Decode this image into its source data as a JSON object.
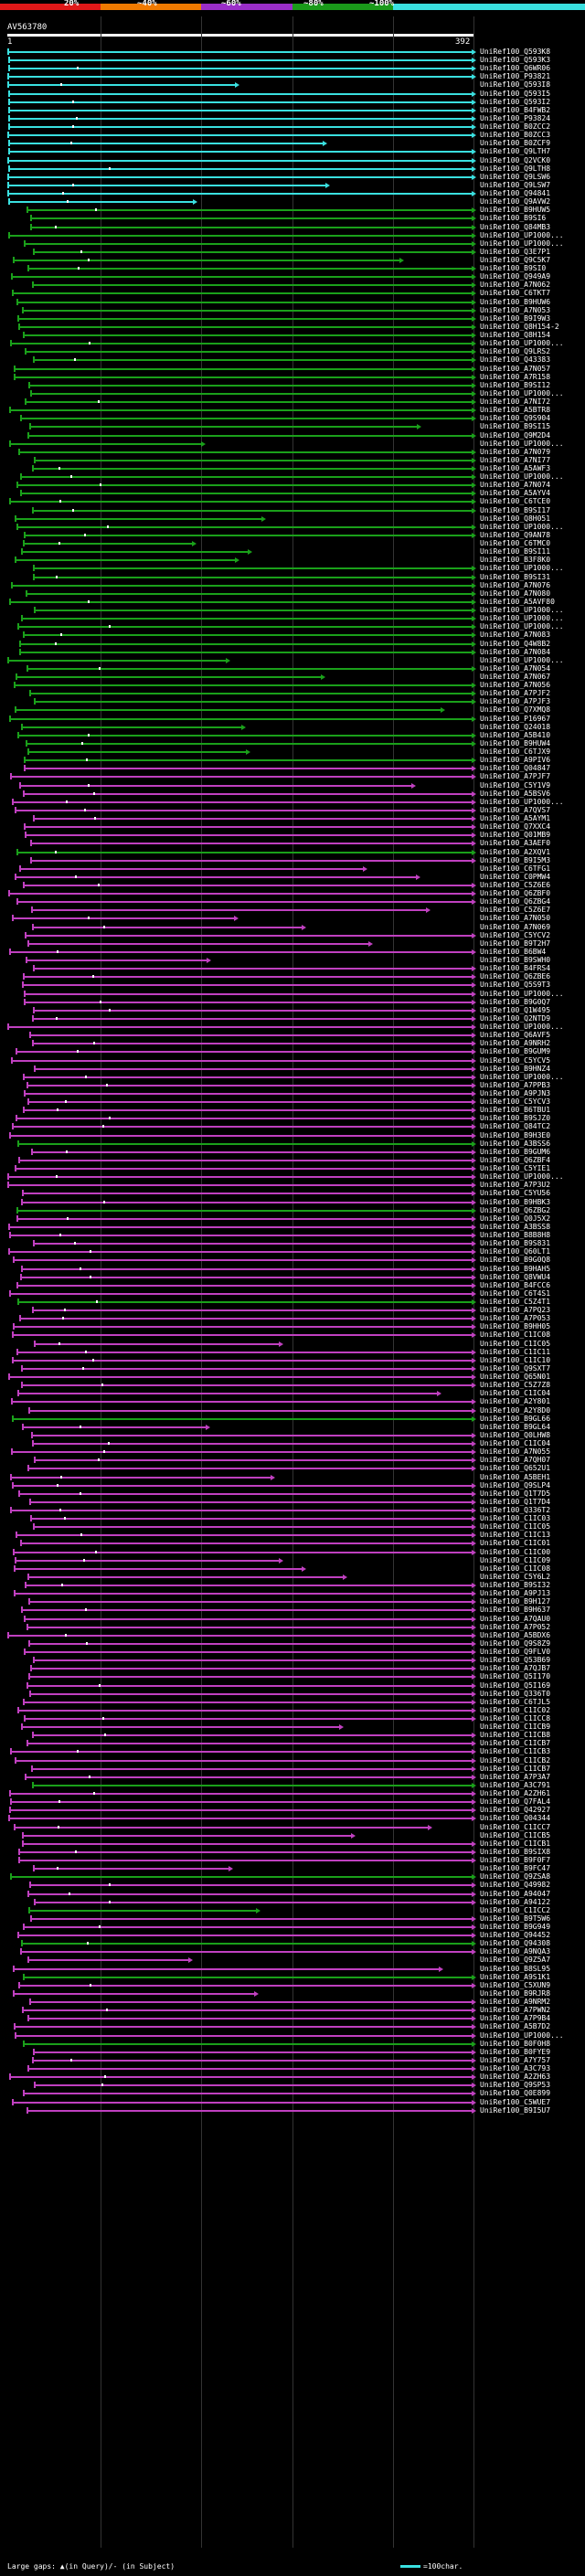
{
  "scale": {
    "labels": [
      "20%",
      "~40%",
      "~60%",
      "~80%",
      "~100%"
    ],
    "colors": [
      "#e01818",
      "#f07a00",
      "#9a2ec8",
      "#1a9a1a",
      "#3ae0e0"
    ]
  },
  "query": {
    "title": "AV563780",
    "start": "1",
    "end": "392"
  },
  "colors": {
    "cyan": "#3ae0e0",
    "green": "#1aa01a",
    "magenta": "#c040c0"
  },
  "hits": [
    "UniRef100_Q593K8",
    "UniRef100_Q593K3",
    "UniRef100_Q6WR06",
    "UniRef100_P93821",
    "UniRef100_Q593I8",
    "UniRef100_Q593I5",
    "UniRef100_Q593I2",
    "UniRef100_B4FWB2",
    "UniRef100_P93824",
    "UniRef100_B0ZCC2",
    "UniRef100_B0ZCC3",
    "UniRef100_B0ZCF9",
    "UniRef100_Q9LTH7",
    "UniRef100_Q2VCK0",
    "UniRef100_Q9LTH8",
    "UniRef100_Q9LSW6",
    "UniRef100_Q9LSW7",
    "UniRef100_Q94841",
    "UniRef100_Q9AVW2",
    "UniRef100_B9HUW5",
    "UniRef100_B9SI6",
    "UniRef100_Q84MB3",
    "UniRef100_UP1000...",
    "UniRef100_UP1000...",
    "UniRef100_Q3E7P1",
    "UniRef100_Q9C5K7",
    "UniRef100_B9SI0",
    "UniRef100_Q949A9",
    "UniRef100_A7N062",
    "UniRef100_C6TKT7",
    "UniRef100_B9HUW6",
    "UniRef100_A7N053",
    "UniRef100_B9I9W3",
    "UniRef100_Q8H154-2",
    "UniRef100_Q8H154",
    "UniRef100_UP1000...",
    "UniRef100_Q9LRS2",
    "UniRef100_Q43383",
    "UniRef100_A7N057",
    "UniRef100_A7R158",
    "UniRef100_B9SI12",
    "UniRef100_UP1000...",
    "UniRef100_A7NI72",
    "UniRef100_A5BTR8",
    "UniRef100_Q9S904",
    "UniRef100_B9SI15",
    "UniRef100_Q9M2D4",
    "UniRef100_UP1000...",
    "UniRef100_A7N079",
    "UniRef100_A7NI77",
    "UniRef100_A5AWF3",
    "UniRef100_UP1000...",
    "UniRef100_A7N074",
    "UniRef100_A5AYV4",
    "UniRef100_C6TCE0",
    "UniRef100_B9SI17",
    "UniRef100_Q8H051",
    "UniRef100_UP1000...",
    "UniRef100_Q9AN78",
    "UniRef100_C6TMC0",
    "UniRef100_B9SI11",
    "UniRef100_B3F8K0",
    "UniRef100_UP1000...",
    "UniRef100_B9SI31",
    "UniRef100_A7N076",
    "UniRef100_A7N080",
    "UniRef100_A5AVF80",
    "UniRef100_UP1000...",
    "UniRef100_UP1000...",
    "UniRef100_UP1000...",
    "UniRef100_A7N083",
    "UniRef100_Q4W8B2",
    "UniRef100_A7N084",
    "UniRef100_UP1000...",
    "UniRef100_A7N054",
    "UniRef100_A7N067",
    "UniRef100_A7N056",
    "UniRef100_A7PJF2",
    "UniRef100_A7PJF3",
    "UniRef100_Q7XMQ8",
    "UniRef100_P16967",
    "UniRef100_Q24018",
    "UniRef100_A5B410",
    "UniRef100_B9HUW4",
    "UniRef100_C6TJX9",
    "UniRef100_A9PIV6",
    "UniRef100_Q04847",
    "UniRef100_A7PJF7",
    "UniRef100_C5Y1V9",
    "UniRef100_A5BSV6",
    "UniRef100_UP1000...",
    "UniRef100_A7QVS7",
    "UniRef100_A5AYM1",
    "UniRef100_Q7XXC4",
    "UniRef100_Q01MB9",
    "UniRef100_A3AEF0",
    "UniRef100_A2XQV1",
    "UniRef100_B9I5M3",
    "UniRef100_C6TFG1",
    "UniRef100_C0PMW4",
    "UniRef100_C5Z6E6",
    "UniRef100_Q6ZBF0",
    "UniRef100_Q6ZBG4",
    "UniRef100_C5Z6E7",
    "UniRef100_A7N050",
    "UniRef100_A7N069",
    "UniRef100_C5YCV2",
    "UniRef100_B9T2H7",
    "UniRef100_B6BW4",
    "UniRef100_B9SWH0",
    "UniRef100_B4FRS4",
    "UniRef100_Q6ZBE6",
    "UniRef100_Q5S9T3",
    "UniRef100_UP1000...",
    "UniRef100_B9G0Q7",
    "UniRef100_Q1W495",
    "UniRef100_Q2NTD9",
    "UniRef100_UP1000...",
    "UniRef100_Q6AVF5",
    "UniRef100_A9NRH2",
    "UniRef100_B9GUM9",
    "UniRef100_C5YCV5",
    "UniRef100_B9HNZ4",
    "UniRef100_UP1000...",
    "UniRef100_A7PPB3",
    "UniRef100_A9PJN3",
    "UniRef100_C5YCV3",
    "UniRef100_B6TBU1",
    "UniRef100_B9SJZ0",
    "UniRef100_Q84TC2",
    "UniRef100_B9H3E0",
    "UniRef100_A3BSS6",
    "UniRef100_B9GUM6",
    "UniRef100_Q6ZBF4",
    "UniRef100_C5YIE1",
    "UniRef100_UP1000...",
    "UniRef100_A7P3U2",
    "UniRef100_C5YU56",
    "UniRef100_B9HBK3",
    "UniRef100_Q6ZBG2",
    "UniRef100_Q0J5X2",
    "UniRef100_A3BSS8",
    "UniRef100_B8B8H8",
    "UniRef100_B9S831",
    "UniRef100_Q60LT1",
    "UniRef100_B9G0Q8",
    "UniRef100_B9HAH5",
    "UniRef100_Q8VWU4",
    "UniRef100_B4FCC6",
    "UniRef100_C6T4S1",
    "UniRef100_C5Z4T1",
    "UniRef100_A7PQ23",
    "UniRef100_A7P053",
    "UniRef100_B9HH05",
    "UniRef100_C1IC08",
    "UniRef100_C1IC05",
    "UniRef100_C1IC11",
    "UniRef100_C1IC10",
    "UniRef100_Q9SXT7",
    "UniRef100_Q65N01",
    "UniRef100_C5Z7Z8",
    "UniRef100_C1IC04",
    "UniRef100_A2Y801",
    "UniRef100_A2Y8D0",
    "UniRef100_B9GL66",
    "UniRef100_B9GL64",
    "UniRef100_Q0LHW8",
    "UniRef100_C1IC04",
    "UniRef100_A7N055",
    "UniRef100_A7QH07",
    "UniRef100_Q652U1",
    "UniRef100_A5BEH1",
    "UniRef100_Q9SLP4",
    "UniRef100_Q1T7D5",
    "UniRef100_Q1T7D4",
    "UniRef100_Q336T2",
    "UniRef100_C1IC03",
    "UniRef100_C1IC05",
    "UniRef100_C1IC13",
    "UniRef100_C1IC01",
    "UniRef100_C1IC00",
    "UniRef100_C1IC09",
    "UniRef100_C1IC08",
    "UniRef100_C5Y6L2",
    "UniRef100_B9SI32",
    "UniRef100_A9PJ13",
    "UniRef100_B9H127",
    "UniRef100_B9H637",
    "UniRef100_A7QAU0",
    "UniRef100_A7P052",
    "UniRef100_A5BDX6",
    "UniRef100_Q9S8Z9",
    "UniRef100_Q9FLV0",
    "UniRef100_Q53B69",
    "UniRef100_A7QJB7",
    "UniRef100_Q5I170",
    "UniRef100_Q5I169",
    "UniRef100_Q336T0",
    "UniRef100_C6TJL5",
    "UniRef100_C1IC02",
    "UniRef100_C1ICC8",
    "UniRef100_C1ICB9",
    "UniRef100_C1ICB8",
    "UniRef100_C1ICB7",
    "UniRef100_C1ICB3",
    "UniRef100_C1ICB2",
    "UniRef100_C1ICB7",
    "UniRef100_A7P3A7",
    "UniRef100_A3C791",
    "UniRef100_A2ZH61",
    "UniRef100_Q7FAL4",
    "UniRef100_Q42927",
    "UniRef100_Q04344",
    "UniRef100_C1ICC7",
    "UniRef100_C1ICB5",
    "UniRef100_C1ICB1",
    "UniRef100_B9SIX8",
    "UniRef100_B9F0F7",
    "UniRef100_B9FC47",
    "UniRef100_Q9ZSA8",
    "UniRef100_Q49982",
    "UniRef100_A94047",
    "UniRef100_A94122",
    "UniRef100_C1ICC2",
    "UniRef100_B9T5W6",
    "UniRef100_B9G949",
    "UniRef100_Q94452",
    "UniRef100_Q94308",
    "UniRef100_A9NQA3",
    "UniRef100_Q9Z5A7",
    "UniRef100_B8SL95",
    "UniRef100_A9S1K1",
    "UniRef100_C5XUN9",
    "UniRef100_B9RJR8",
    "UniRef100_A9NRM2",
    "UniRef100_A7PWN2",
    "UniRef100_A7P9B4",
    "UniRef100_A5B7D2",
    "UniRef100_UP1000...",
    "UniRef100_B0F0H8",
    "UniRef100_B0FYE9",
    "UniRef100_A7Y757",
    "UniRef100_A3C793",
    "UniRef100_A2ZH63",
    "UniRef100_Q9SP53",
    "UniRef100_Q0E899",
    "UniRef100_C5WUE7",
    "UniRef100_B9I5U7"
  ],
  "legend": {
    "gaps": "Large gaps: ▲(in Query)/- (in Subject)",
    "scale": "=100char."
  }
}
